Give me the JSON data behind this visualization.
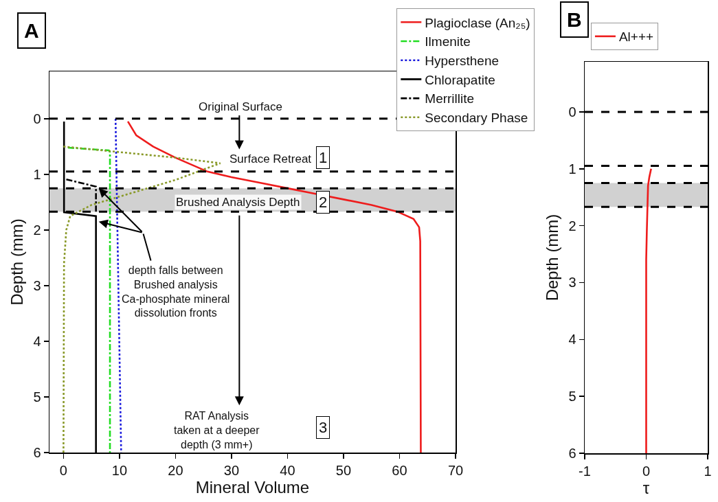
{
  "chart_data": [
    {
      "type": "line",
      "xlabel": "Mineral Volume",
      "ylabel": "Depth (mm)",
      "xlim": [
        -2.5,
        70
      ],
      "xticks": [
        0,
        10,
        20,
        30,
        40,
        50,
        60,
        70
      ],
      "ylim": [
        6,
        -0.85
      ],
      "yticks": [
        0,
        1,
        2,
        3,
        4,
        5,
        6
      ],
      "grid": false,
      "legend": "top right",
      "marker": "none",
      "series": [
        {
          "name": "Plagioclase (An₂₅)",
          "color": "#ee1c1c",
          "line_style": "solid",
          "x": [
            11.5,
            13,
            16,
            20,
            25.7,
            30,
            35,
            40,
            45,
            50,
            55,
            59.6,
            62.5,
            63.5,
            63.7,
            63.8
          ],
          "values": [
            0.05,
            0.3,
            0.5,
            0.7,
            0.95,
            1.05,
            1.15,
            1.25,
            1.35,
            1.45,
            1.55,
            1.67,
            1.8,
            1.95,
            2.2,
            6
          ]
        },
        {
          "name": "Ilmenite",
          "color": "#22dd22",
          "line_style": "dashdot",
          "x": [
            0.8,
            8.1,
            8.3,
            8.3
          ],
          "values": [
            0.52,
            0.57,
            0.6,
            6
          ]
        },
        {
          "name": "Hypersthene",
          "color": "#1a1add",
          "line_style": "dotted",
          "x": [
            9.3,
            10.3
          ],
          "values": [
            0,
            6
          ]
        },
        {
          "name": "Chlorapatite",
          "color": "#000000",
          "line_style": "solid",
          "x": [
            0.1,
            0.1,
            5.8,
            5.8
          ],
          "values": [
            0.05,
            1.68,
            1.75,
            6
          ]
        },
        {
          "name": "Merrillite",
          "color": "#000000",
          "line_style": "dashdot",
          "x": [
            0.5,
            5.8,
            5.8
          ],
          "values": [
            1.09,
            1.22,
            1.68
          ]
        },
        {
          "name": "Secondary Phase",
          "color": "#8a9a2a",
          "line_style": "dotted",
          "x": [
            0,
            10,
            20,
            28,
            20,
            10,
            5,
            1.2,
            0.5,
            0.1,
            0
          ],
          "values": [
            0.5,
            0.6,
            0.7,
            0.8,
            1.1,
            1.4,
            1.55,
            1.75,
            2,
            2.6,
            6
          ]
        }
      ],
      "ref_lines": [
        {
          "axis": "y",
          "value": 0,
          "color": "#000000",
          "line_style": "dashed"
        },
        {
          "axis": "y",
          "value": 0.95,
          "color": "#000000",
          "line_style": "dashed"
        },
        {
          "axis": "y",
          "value": 1.25,
          "color": "#000000",
          "line_style": "dashed"
        },
        {
          "axis": "y",
          "value": 1.67,
          "color": "#000000",
          "line_style": "dashed"
        }
      ],
      "bands": [
        {
          "axis": "y",
          "from": 1.25,
          "to": 1.67,
          "color": "#999999"
        }
      ],
      "annotations": [
        "A",
        "Original Surface",
        "Surface Retreat",
        "1",
        "Brushed Analysis Depth",
        "2",
        "depth falls between\nBrushed analysis\nCa-phosphate mineral\ndissolution fronts",
        "RAT Analysis\ntaken at a deeper\ndepth (3 mm+)",
        "3"
      ]
    },
    {
      "type": "line",
      "xlabel": "τ",
      "ylabel": "Depth (mm)",
      "xlim": [
        -1,
        1
      ],
      "xticks": [
        -1,
        0,
        1
      ],
      "ylim": [
        6,
        -0.88
      ],
      "yticks": [
        0,
        1,
        2,
        3,
        4,
        5,
        6
      ],
      "grid": false,
      "legend": "top",
      "marker": "none",
      "series": [
        {
          "name": "Al+++",
          "color": "#ee1c1c",
          "line_style": "solid",
          "x": [
            0.08,
            0.05,
            0.03,
            0.02,
            0.01,
            0,
            0
          ],
          "values": [
            1.0,
            1.15,
            1.3,
            1.7,
            2.1,
            2.6,
            6
          ]
        }
      ],
      "ref_lines": [
        {
          "axis": "y",
          "value": 0,
          "color": "#000000",
          "line_style": "dashed"
        },
        {
          "axis": "y",
          "value": 0.95,
          "color": "#000000",
          "line_style": "dashed"
        },
        {
          "axis": "y",
          "value": 1.25,
          "color": "#000000",
          "line_style": "dashed"
        },
        {
          "axis": "y",
          "value": 1.67,
          "color": "#000000",
          "line_style": "dashed"
        }
      ],
      "bands": [
        {
          "axis": "y",
          "from": 1.25,
          "to": 1.67,
          "color": "#999999"
        }
      ],
      "annotations": [
        "B"
      ]
    }
  ]
}
